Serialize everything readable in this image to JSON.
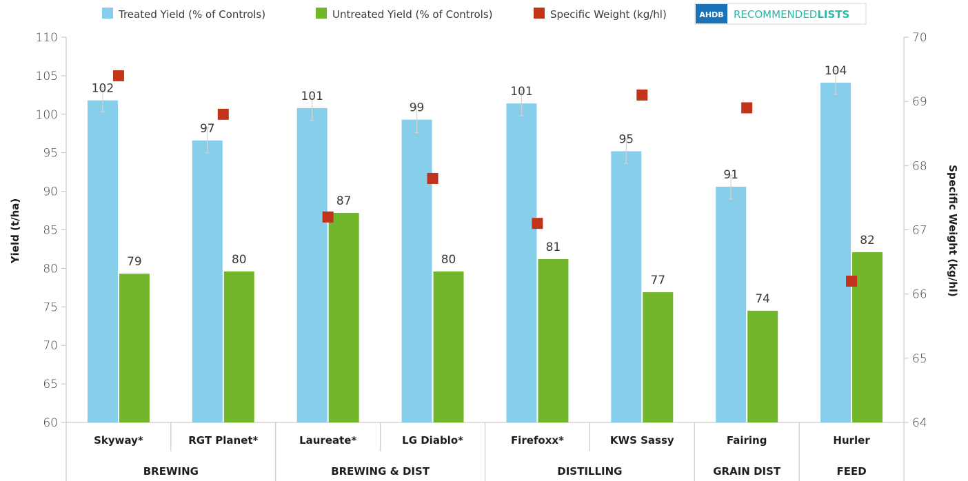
{
  "legend": {
    "treated": "Treated Yield (% of Controls)",
    "untreated": "Untreated Yield (% of Controls)",
    "weight": "Specific Weight (kg/hl)"
  },
  "logo": {
    "badge": "AHDB",
    "word1": "RECOMMENDED",
    "word2": "LISTS"
  },
  "colors": {
    "treated": "#87ceeb",
    "untreated": "#72b62b",
    "weight": "#c1331a",
    "logo_blue": "#1a73b8",
    "logo_teal": "#2bb8a6"
  },
  "chart_data": {
    "type": "bar",
    "categories": [
      "Skyway*",
      "RGT Planet*",
      "Laureate*",
      "LG Diablo*",
      "Firefoxx*",
      "KWS Sassy",
      "Fairing",
      "Hurler"
    ],
    "groups": [
      {
        "label": "BREWING",
        "count": 2
      },
      {
        "label": "BREWING & DIST",
        "count": 2
      },
      {
        "label": "DISTILLING",
        "count": 2
      },
      {
        "label": "GRAIN DIST",
        "count": 1
      },
      {
        "label": "FEED",
        "count": 1
      }
    ],
    "series": [
      {
        "name": "Treated Yield (% of Controls)",
        "axis": "left",
        "values": [
          101.8,
          96.6,
          100.8,
          99.3,
          101.4,
          95.2,
          90.6,
          104.1
        ],
        "labels": [
          "102",
          "97",
          "101",
          "99",
          "101",
          "95",
          "91",
          "104"
        ],
        "error_low": [
          100.3,
          95.0,
          99.2,
          97.6,
          99.8,
          93.6,
          89.0,
          102.6
        ],
        "error_high": [
          103.5,
          98.3,
          102.4,
          101.0,
          103.1,
          96.8,
          92.1,
          105.7
        ]
      },
      {
        "name": "Untreated Yield (% of Controls)",
        "axis": "left",
        "values": [
          79.3,
          79.6,
          87.2,
          79.6,
          81.2,
          76.9,
          74.5,
          82.1
        ],
        "labels": [
          "79",
          "80",
          "87",
          "80",
          "81",
          "77",
          "74",
          "82"
        ]
      },
      {
        "name": "Specific Weight (kg/hl)",
        "axis": "right",
        "marker": "square",
        "values": [
          69.4,
          68.8,
          67.2,
          67.8,
          67.1,
          69.1,
          68.9,
          66.2
        ]
      }
    ],
    "ylabel": "Yield (t/ha)",
    "ylabel_right": "Specific Weight (kg/hl)",
    "ylim": [
      60,
      110
    ],
    "yticks": [
      60,
      65,
      70,
      75,
      80,
      85,
      90,
      95,
      100,
      105,
      110
    ],
    "ylim_right": [
      64,
      70
    ],
    "yticks_right": [
      64,
      65,
      66,
      67,
      68,
      69,
      70
    ],
    "grid": false,
    "legend_position": "top"
  }
}
